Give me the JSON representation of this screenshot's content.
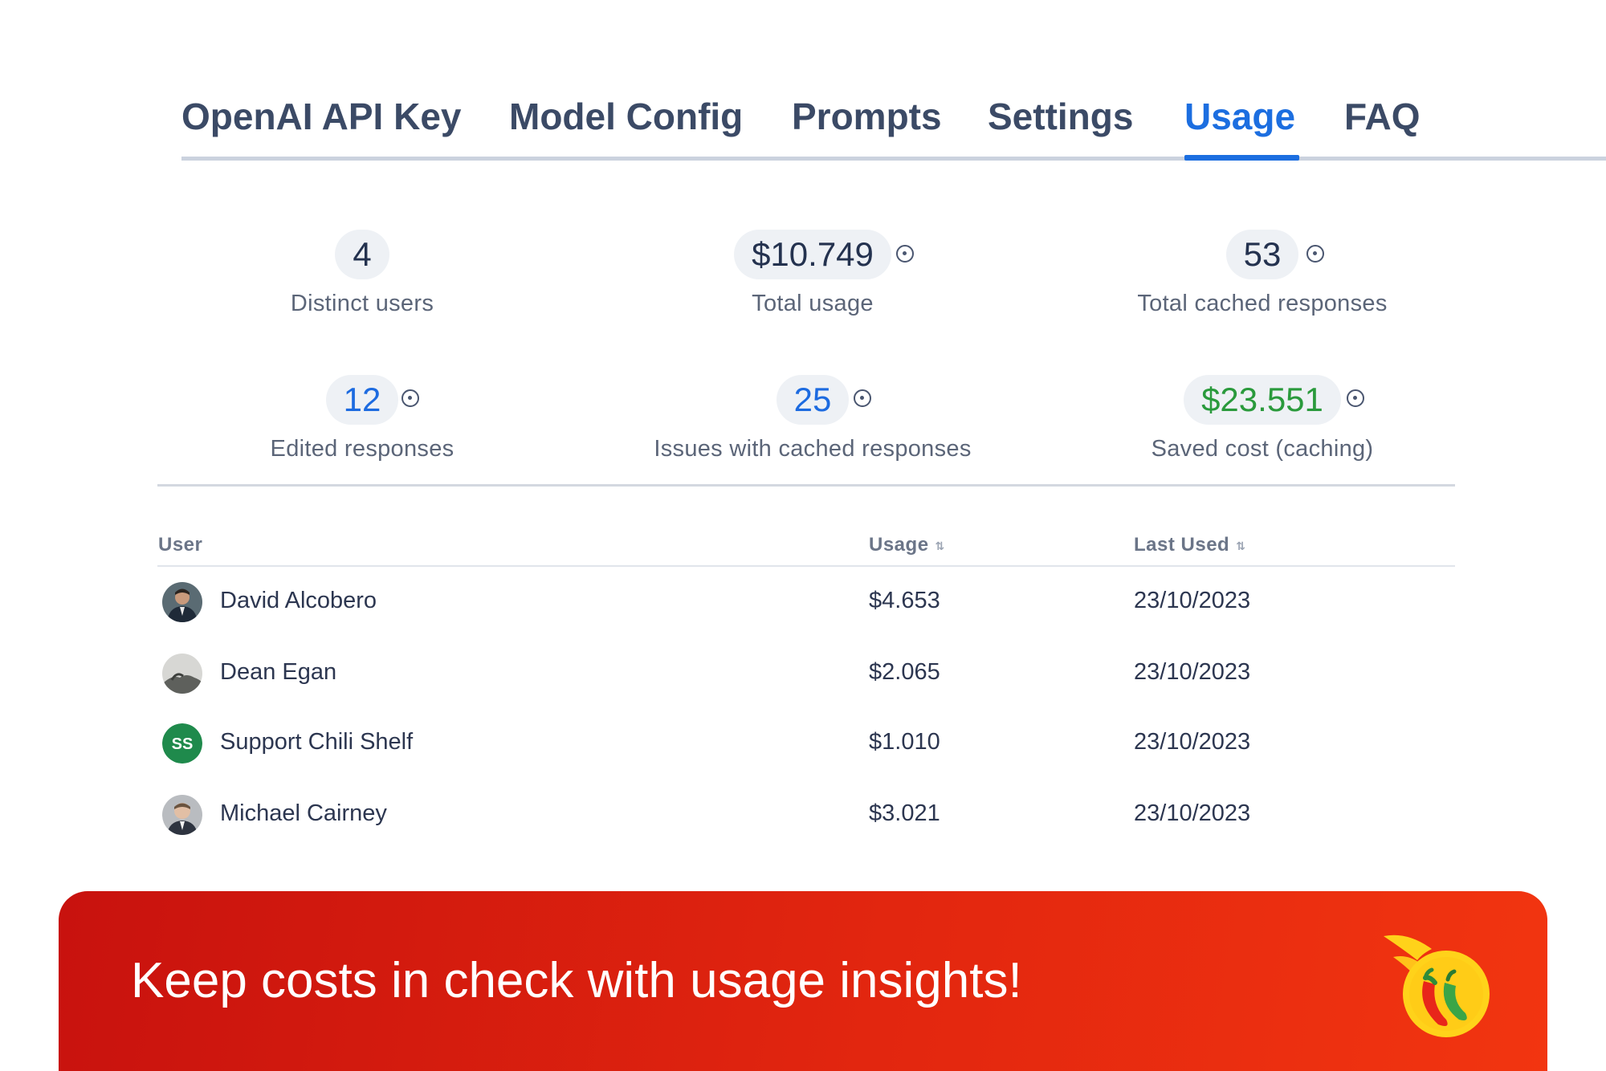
{
  "tabs": [
    {
      "label": "OpenAI API Key",
      "active": false
    },
    {
      "label": "Model Config",
      "active": false
    },
    {
      "label": "Prompts",
      "active": false
    },
    {
      "label": "Settings",
      "active": false
    },
    {
      "label": "Usage",
      "active": true
    },
    {
      "label": "FAQ",
      "active": false
    }
  ],
  "stats": {
    "distinct_users": {
      "value": "4",
      "label": "Distinct users"
    },
    "total_usage": {
      "value": "$10.749",
      "label": "Total usage"
    },
    "total_cached": {
      "value": "53",
      "label": "Total cached responses"
    },
    "edited": {
      "value": "12",
      "label": "Edited responses"
    },
    "issues": {
      "value": "25",
      "label": "Issues with cached responses"
    },
    "saved": {
      "value": "$23.551",
      "label": "Saved cost (caching)"
    }
  },
  "table": {
    "headers": {
      "user": "User",
      "usage": "Usage",
      "last_used": "Last Used"
    },
    "rows": [
      {
        "user": "David Alcobero",
        "usage": "$4.653",
        "last_used": "23/10/2023",
        "avatar": "photo"
      },
      {
        "user": "Dean Egan",
        "usage": "$2.065",
        "last_used": "23/10/2023",
        "avatar": "photo"
      },
      {
        "user": "Support Chili Shelf",
        "usage": "$1.010",
        "last_used": "23/10/2023",
        "avatar": "initials",
        "initials": "SS"
      },
      {
        "user": "Michael Cairney",
        "usage": "$3.021",
        "last_used": "23/10/2023",
        "avatar": "photo"
      }
    ]
  },
  "banner": {
    "text": "Keep costs in check with usage insights!"
  },
  "colors": {
    "accent": "#1c6ee0",
    "saved_green": "#2a9a3c",
    "banner_red": "#d81c0f",
    "avatar_green": "#1f8a4c"
  },
  "icons": {
    "info": "info-circle-icon",
    "sort": "sort-icon",
    "logo": "chili-pepper-logo-icon"
  }
}
